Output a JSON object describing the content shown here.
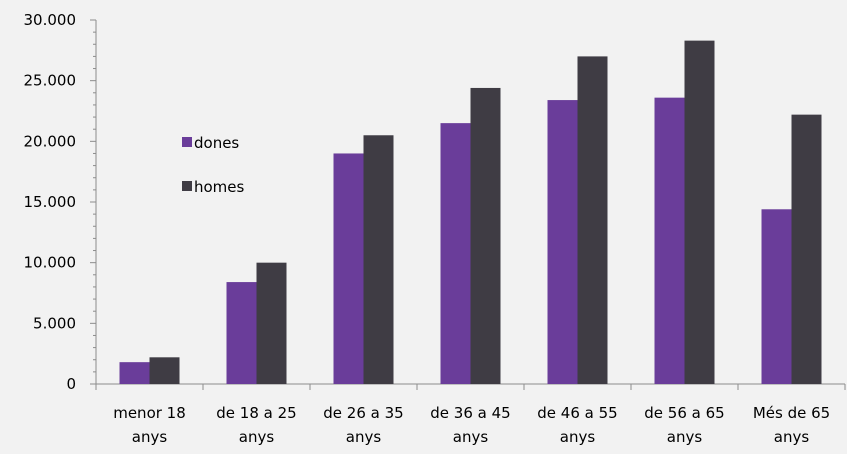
{
  "chart_data": {
    "type": "bar",
    "categories": [
      [
        "menor 18",
        "anys"
      ],
      [
        "de 18 a 25",
        "anys"
      ],
      [
        "de 26 a 35",
        "anys"
      ],
      [
        "de 36 a 45",
        "anys"
      ],
      [
        "de 46 a 55",
        "anys"
      ],
      [
        "de 56 a 65",
        "anys"
      ],
      [
        "Més de 65",
        "anys"
      ]
    ],
    "series": [
      {
        "name": "dones",
        "color": "#6a3d9a",
        "values": [
          1800,
          8400,
          19000,
          21500,
          23400,
          23600,
          14400
        ]
      },
      {
        "name": "homes",
        "color": "#3f3c44",
        "values": [
          2200,
          10000,
          20500,
          24400,
          27000,
          28300,
          22200
        ]
      }
    ],
    "yticks": [
      "0",
      "5.000",
      "10.000",
      "15.000",
      "20.000",
      "25.000",
      "30.000"
    ],
    "ylim": [
      0,
      30000
    ],
    "grid": false,
    "legend": "left"
  }
}
